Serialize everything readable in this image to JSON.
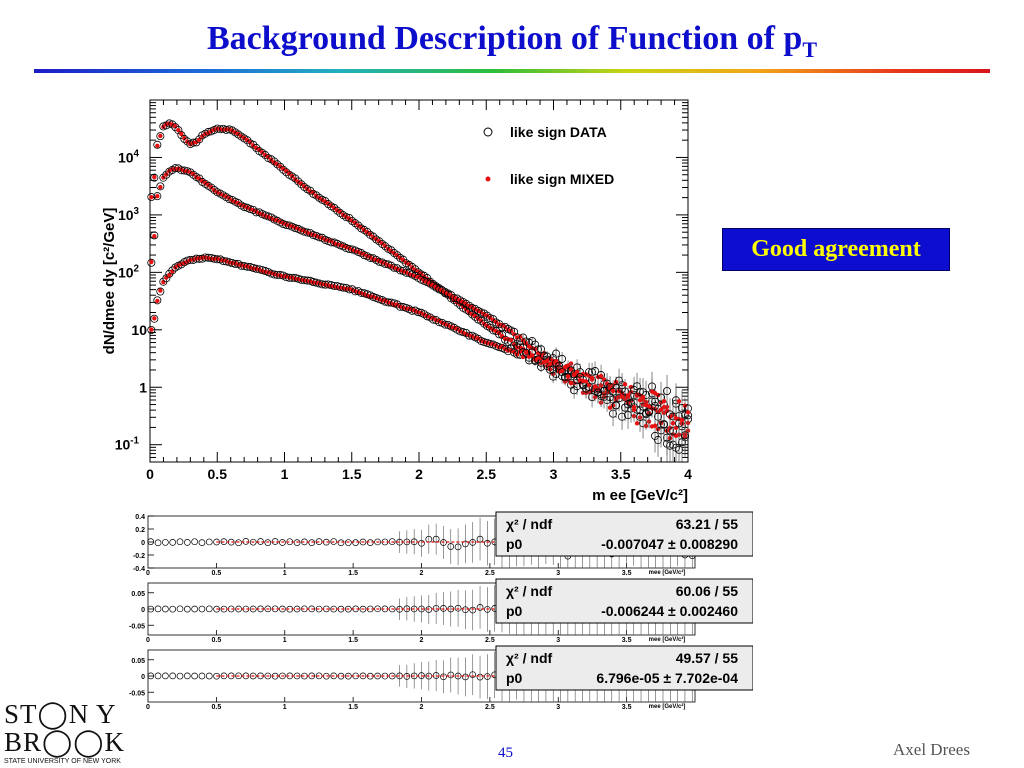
{
  "slide": {
    "title_main": "Background Description of Function of p",
    "title_sub": "T",
    "callout": "Good  agreement",
    "page_number": "45",
    "author": "Axel Drees",
    "logo_line1": "ST◯N Y",
    "logo_line2": "BR◯◯K",
    "logo_line3": "STATE UNIVERSITY OF NEW YORK"
  },
  "colors": {
    "title": "#0d0dcc",
    "callout_bg": "#0d0dd0",
    "callout_text": "#ffff00",
    "data_marker": "#000000",
    "mixed_marker": "#e81010"
  },
  "chart_data": [
    {
      "type": "scatter",
      "title": "",
      "xlabel": "m_ee [GeV/c^2]",
      "ylabel": "dN/dm_ee dy [c^2/GeV]",
      "xlim": [
        0,
        4
      ],
      "ylim": [
        0.05,
        100000
      ],
      "yscale": "log",
      "x_ticks": [
        "0",
        "0.5",
        "1",
        "1.5",
        "2",
        "2.5",
        "3",
        "3.5",
        "4"
      ],
      "y_ticks": [
        "10^-1",
        "1",
        "10",
        "10^2",
        "10^3",
        "10^4"
      ],
      "legend": {
        "placement": "top-right",
        "entries": [
          "like sign DATA",
          "like sign MIXED"
        ]
      },
      "curves": [
        {
          "x": [
            0.02,
            0.05,
            0.1,
            0.15,
            0.2,
            0.25,
            0.3,
            0.35,
            0.4,
            0.5,
            0.6,
            0.7,
            0.8,
            1.0,
            1.2,
            1.5,
            2.0,
            2.5,
            3.0,
            3.5,
            4.0
          ],
          "y": [
            2000,
            15000,
            35000,
            40000,
            33000,
            22000,
            17000,
            19000,
            25000,
            32000,
            30000,
            22000,
            14000,
            6000,
            2500,
            800,
            100,
            12,
            2,
            0.5,
            0.15
          ]
        },
        {
          "x": [
            0.02,
            0.05,
            0.1,
            0.15,
            0.2,
            0.3,
            0.4,
            0.5,
            0.7,
            1.0,
            1.5,
            2.0,
            2.5,
            3.0,
            3.5,
            4.0
          ],
          "y": [
            150,
            2000,
            4500,
            6000,
            6500,
            5500,
            3700,
            2500,
            1400,
            700,
            250,
            80,
            18,
            3,
            0.7,
            0.2
          ]
        },
        {
          "x": [
            0.02,
            0.05,
            0.1,
            0.2,
            0.3,
            0.4,
            0.5,
            0.7,
            1.0,
            1.5,
            2.0,
            2.5,
            3.0,
            3.5,
            4.0
          ],
          "y": [
            10,
            30,
            70,
            130,
            165,
            180,
            170,
            130,
            85,
            50,
            20,
            6,
            2.5,
            0.8,
            0.3
          ]
        }
      ]
    },
    {
      "type": "scatter",
      "title": "",
      "xlim": [
        0,
        4
      ],
      "ylim": [
        -0.4,
        0.4
      ],
      "y_ticks": [
        "0.4",
        "0.2",
        "0",
        "-0.2",
        "-0.4"
      ],
      "x_ticks": [
        "0.5",
        "1",
        "1.5",
        "2",
        "2.5",
        "3",
        "3.5"
      ],
      "xlabel": "m_ee [GeV/c^2]",
      "stats": {
        "chi2_label": "χ² / ndf",
        "chi2": "63.21 / 55",
        "p0_label": "p0",
        "p0": "-0.007047 ± 0.008290"
      }
    },
    {
      "type": "scatter",
      "title": "",
      "xlim": [
        0,
        4
      ],
      "ylim": [
        -0.08,
        0.08
      ],
      "y_ticks": [
        "0.05",
        "0",
        "-0.05"
      ],
      "x_ticks": [
        "0.5",
        "1",
        "1.5",
        "2",
        "2.5",
        "3",
        "3.5"
      ],
      "xlabel": "m_ee [GeV/c^2]",
      "stats": {
        "chi2_label": "χ² / ndf",
        "chi2": "60.06 / 55",
        "p0_label": "p0",
        "p0": "-0.006244 ± 0.002460"
      }
    },
    {
      "type": "scatter",
      "title": "",
      "xlim": [
        0,
        4
      ],
      "ylim": [
        -0.08,
        0.08
      ],
      "y_ticks": [
        "0.05",
        "0",
        "-0.05"
      ],
      "x_ticks": [
        "0.5",
        "1",
        "1.5",
        "2",
        "2.5",
        "3",
        "3.5"
      ],
      "xlabel": "m_ee [GeV/c^2]",
      "stats": {
        "chi2_label": "χ² / ndf",
        "chi2": "49.57 / 55",
        "p0_label": "p0",
        "p0": "6.796e-05 ± 7.702e-04"
      }
    }
  ]
}
